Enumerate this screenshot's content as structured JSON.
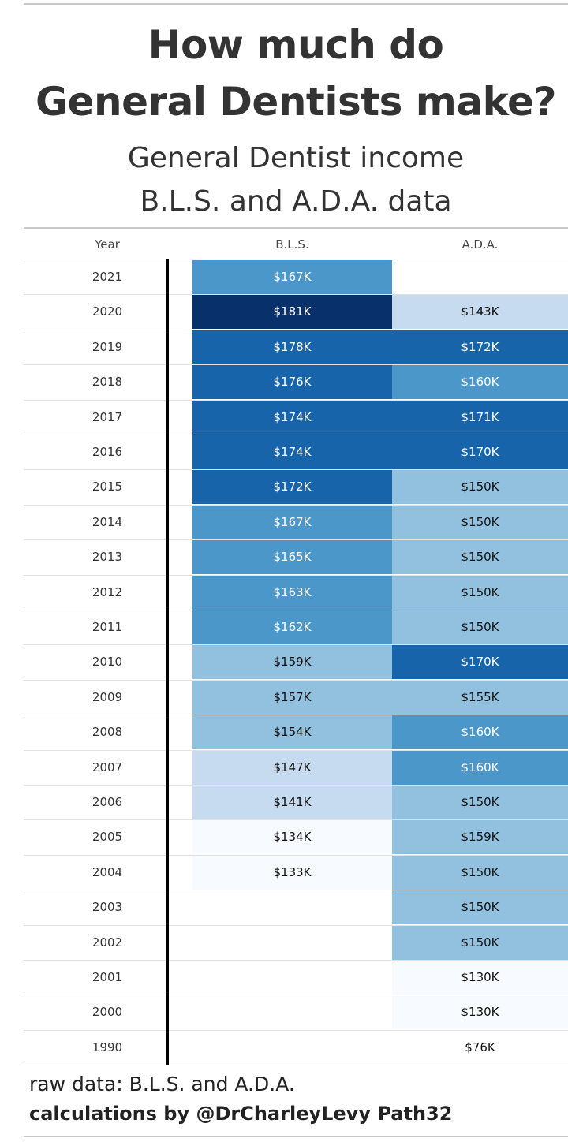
{
  "title_line1": "How much do",
  "title_line2": "General Dentists make?",
  "subtitle_line1": "General Dentist income",
  "subtitle_line2": "B.L.S. and A.D.A. data",
  "footer_line1": "raw data: B.L.S. and A.D.A.",
  "footer_line2": "calculations by @DrCharleyLevy Path32",
  "chart_data": {
    "type": "table",
    "columns": [
      "Year",
      "B.L.S.",
      "A.D.A."
    ],
    "rows": [
      {
        "year": "2021",
        "bls": "$167K",
        "ada": ""
      },
      {
        "year": "2020",
        "bls": "$181K",
        "ada": "$143K"
      },
      {
        "year": "2019",
        "bls": "$178K",
        "ada": "$172K"
      },
      {
        "year": "2018",
        "bls": "$176K",
        "ada": "$160K"
      },
      {
        "year": "2017",
        "bls": "$174K",
        "ada": "$171K"
      },
      {
        "year": "2016",
        "bls": "$174K",
        "ada": "$170K"
      },
      {
        "year": "2015",
        "bls": "$172K",
        "ada": "$150K"
      },
      {
        "year": "2014",
        "bls": "$167K",
        "ada": "$150K"
      },
      {
        "year": "2013",
        "bls": "$165K",
        "ada": "$150K"
      },
      {
        "year": "2012",
        "bls": "$163K",
        "ada": "$150K"
      },
      {
        "year": "2011",
        "bls": "$162K",
        "ada": "$150K"
      },
      {
        "year": "2010",
        "bls": "$159K",
        "ada": "$170K"
      },
      {
        "year": "2009",
        "bls": "$157K",
        "ada": "$155K"
      },
      {
        "year": "2008",
        "bls": "$154K",
        "ada": "$160K"
      },
      {
        "year": "2007",
        "bls": "$147K",
        "ada": "$160K"
      },
      {
        "year": "2006",
        "bls": "$141K",
        "ada": "$150K"
      },
      {
        "year": "2005",
        "bls": "$134K",
        "ada": "$159K"
      },
      {
        "year": "2004",
        "bls": "$133K",
        "ada": "$150K"
      },
      {
        "year": "2003",
        "bls": "",
        "ada": "$150K"
      },
      {
        "year": "2002",
        "bls": "",
        "ada": "$150K"
      },
      {
        "year": "2001",
        "bls": "",
        "ada": "$130K"
      },
      {
        "year": "2000",
        "bls": "",
        "ada": "$130K"
      },
      {
        "year": "1990",
        "bls": "",
        "ada": "$76K"
      }
    ],
    "color_scale": {
      "lightest": "#f7fbff",
      "light": "#c6dbef",
      "mid_light": "#92c0df",
      "mid": "#4b97c9",
      "dark": "#1764ab",
      "darkest": "#08306b"
    }
  }
}
